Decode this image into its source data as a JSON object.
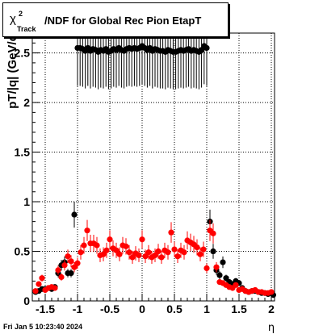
{
  "chart_data": {
    "type": "scatter",
    "title_parts": {
      "symbol": "χ",
      "sup": "2",
      "sub": "Track",
      "rest": "/NDF for Global Rec Pion EtapT"
    },
    "xlabel": "η",
    "ylabel": "pT/|q| (GeV/c",
    "xlim": [
      -1.7,
      2.05
    ],
    "ylim": [
      0,
      2.7
    ],
    "xticks": [
      "-1.5",
      "-1",
      "-0.5",
      "0",
      "0.5",
      "1",
      "1.5",
      "2"
    ],
    "yticks": [
      "0",
      "0.5",
      "1",
      "1.5",
      "2",
      "2.5"
    ],
    "grid": true,
    "series": [
      {
        "color": "#000000",
        "points": [
          [
            -1.65,
            0.09
          ],
          [
            -1.6,
            0.1
          ],
          [
            -1.55,
            0.12
          ],
          [
            -1.5,
            0.12
          ],
          [
            -1.45,
            0.13
          ],
          [
            -1.4,
            0.12
          ],
          [
            -1.35,
            0.14
          ],
          [
            -1.3,
            0.28
          ],
          [
            -1.25,
            0.36
          ],
          [
            -1.2,
            0.39
          ],
          [
            -1.15,
            0.28
          ],
          [
            -1.1,
            0.28
          ],
          [
            -1.05,
            0.87
          ],
          [
            -1.0,
            2.55
          ],
          [
            -0.96,
            2.55
          ],
          [
            -0.92,
            2.54
          ],
          [
            -0.88,
            2.52
          ],
          [
            -0.84,
            2.55
          ],
          [
            -0.8,
            2.52
          ],
          [
            -0.76,
            2.54
          ],
          [
            -0.72,
            2.53
          ],
          [
            -0.68,
            2.51
          ],
          [
            -0.64,
            2.53
          ],
          [
            -0.6,
            2.52
          ],
          [
            -0.56,
            2.54
          ],
          [
            -0.52,
            2.51
          ],
          [
            -0.48,
            2.52
          ],
          [
            -0.44,
            2.54
          ],
          [
            -0.4,
            2.53
          ],
          [
            -0.36,
            2.55
          ],
          [
            -0.32,
            2.53
          ],
          [
            -0.28,
            2.52
          ],
          [
            -0.24,
            2.54
          ],
          [
            -0.2,
            2.55
          ],
          [
            -0.16,
            2.54
          ],
          [
            -0.12,
            2.55
          ],
          [
            -0.08,
            2.54
          ],
          [
            -0.04,
            2.55
          ],
          [
            0.0,
            2.57
          ],
          [
            0.04,
            2.55
          ],
          [
            0.08,
            2.53
          ],
          [
            0.12,
            2.55
          ],
          [
            0.16,
            2.52
          ],
          [
            0.2,
            2.54
          ],
          [
            0.24,
            2.53
          ],
          [
            0.28,
            2.52
          ],
          [
            0.32,
            2.52
          ],
          [
            0.36,
            2.51
          ],
          [
            0.4,
            2.53
          ],
          [
            0.44,
            2.52
          ],
          [
            0.48,
            2.51
          ],
          [
            0.52,
            2.51
          ],
          [
            0.56,
            2.52
          ],
          [
            0.6,
            2.53
          ],
          [
            0.64,
            2.52
          ],
          [
            0.68,
            2.53
          ],
          [
            0.72,
            2.54
          ],
          [
            0.76,
            2.52
          ],
          [
            0.8,
            2.53
          ],
          [
            0.84,
            2.52
          ],
          [
            0.88,
            2.51
          ],
          [
            0.92,
            2.53
          ],
          [
            0.96,
            2.57
          ],
          [
            1.0,
            2.55
          ],
          [
            1.05,
            0.8
          ],
          [
            1.1,
            0.5
          ],
          [
            1.15,
            0.31
          ],
          [
            1.2,
            0.26
          ],
          [
            1.25,
            0.39
          ],
          [
            1.3,
            0.23
          ],
          [
            1.35,
            0.19
          ],
          [
            1.4,
            0.17
          ],
          [
            1.45,
            0.2
          ],
          [
            1.5,
            0.18
          ],
          [
            1.55,
            0.13
          ],
          [
            1.6,
            0.1
          ],
          [
            1.65,
            0.09
          ],
          [
            1.7,
            0.1
          ],
          [
            1.75,
            0.1
          ],
          [
            1.8,
            0.09
          ],
          [
            1.85,
            0.08
          ],
          [
            1.9,
            0.08
          ],
          [
            1.95,
            0.07
          ],
          [
            2.0,
            0.08
          ],
          [
            2.03,
            0.06
          ]
        ]
      },
      {
        "color": "#ff0000",
        "points": [
          [
            -1.65,
            0.1
          ],
          [
            -1.6,
            0.17
          ],
          [
            -1.55,
            0.23
          ],
          [
            -1.5,
            0.11
          ],
          [
            -1.45,
            0.13
          ],
          [
            -1.4,
            0.14
          ],
          [
            -1.35,
            0.13
          ],
          [
            -1.3,
            0.31
          ],
          [
            -1.25,
            0.24
          ],
          [
            -1.2,
            0.36
          ],
          [
            -1.15,
            0.45
          ],
          [
            -1.1,
            0.4
          ],
          [
            -1.05,
            0.34
          ],
          [
            -1.0,
            0.38
          ],
          [
            -0.95,
            0.49
          ],
          [
            -0.9,
            0.56
          ],
          [
            -0.85,
            0.71
          ],
          [
            -0.8,
            0.58
          ],
          [
            -0.75,
            0.58
          ],
          [
            -0.7,
            0.56
          ],
          [
            -0.65,
            0.46
          ],
          [
            -0.6,
            0.47
          ],
          [
            -0.55,
            0.51
          ],
          [
            -0.5,
            0.62
          ],
          [
            -0.45,
            0.53
          ],
          [
            -0.4,
            0.51
          ],
          [
            -0.35,
            0.47
          ],
          [
            -0.3,
            0.56
          ],
          [
            -0.25,
            0.55
          ],
          [
            -0.2,
            0.49
          ],
          [
            -0.15,
            0.44
          ],
          [
            -0.1,
            0.48
          ],
          [
            -0.05,
            0.46
          ],
          [
            0.0,
            0.62
          ],
          [
            0.05,
            0.45
          ],
          [
            0.1,
            0.49
          ],
          [
            0.15,
            0.44
          ],
          [
            0.2,
            0.46
          ],
          [
            0.25,
            0.5
          ],
          [
            0.3,
            0.44
          ],
          [
            0.35,
            0.51
          ],
          [
            0.4,
            0.49
          ],
          [
            0.45,
            0.69
          ],
          [
            0.5,
            0.52
          ],
          [
            0.55,
            0.45
          ],
          [
            0.6,
            0.51
          ],
          [
            0.65,
            0.49
          ],
          [
            0.7,
            0.61
          ],
          [
            0.75,
            0.59
          ],
          [
            0.8,
            0.57
          ],
          [
            0.85,
            0.54
          ],
          [
            0.9,
            0.47
          ],
          [
            0.95,
            0.52
          ],
          [
            1.0,
            0.33
          ],
          [
            1.05,
            0.71
          ],
          [
            1.1,
            0.68
          ],
          [
            1.15,
            0.34
          ],
          [
            1.2,
            0.19
          ],
          [
            1.25,
            0.18
          ],
          [
            1.3,
            0.16
          ],
          [
            1.35,
            0.14
          ],
          [
            1.4,
            0.13
          ],
          [
            1.45,
            0.16
          ],
          [
            1.5,
            0.11
          ],
          [
            1.55,
            0.12
          ],
          [
            1.6,
            0.1
          ],
          [
            1.65,
            0.09
          ],
          [
            1.7,
            0.1
          ],
          [
            1.75,
            0.11
          ],
          [
            1.8,
            0.09
          ],
          [
            1.85,
            0.09
          ],
          [
            1.9,
            0.08
          ],
          [
            1.95,
            0.08
          ],
          [
            2.0,
            0.09
          ]
        ]
      }
    ]
  },
  "footer": {
    "timestamp": "Fri Jan  5 10:23:40 2024"
  }
}
